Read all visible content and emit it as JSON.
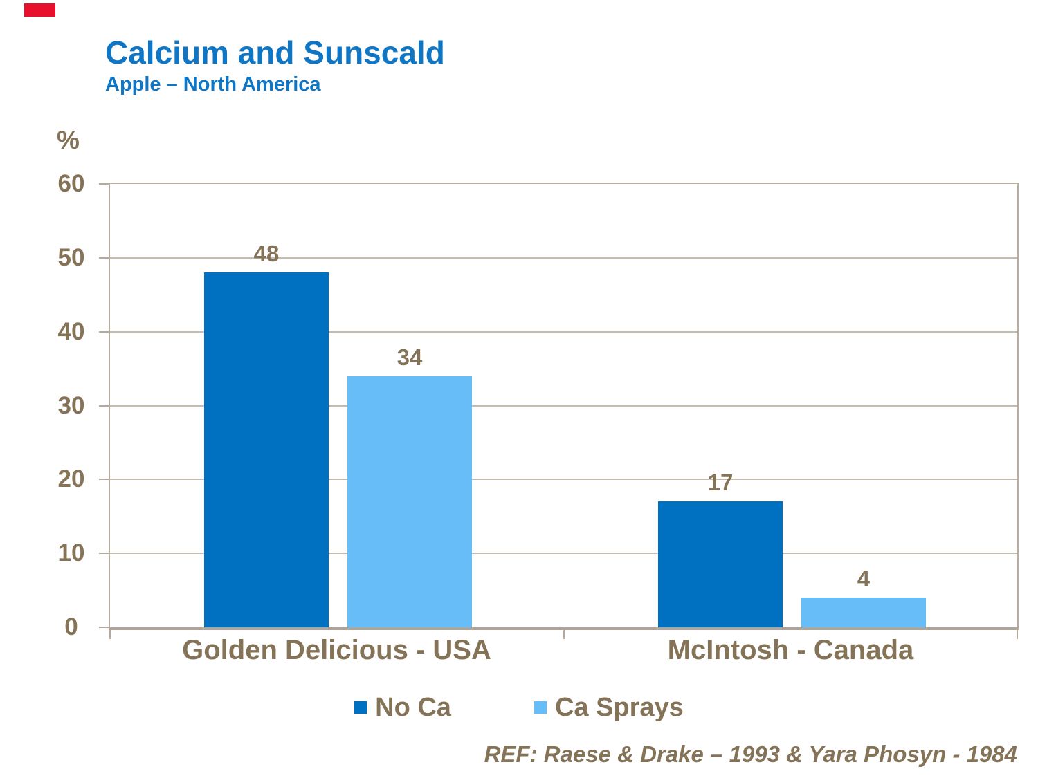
{
  "brand": {
    "mark_color": "#E8112D"
  },
  "header": {
    "title": "Calcium and Sunscald",
    "subtitle": "Apple – North America"
  },
  "y_axis": {
    "unit_label": "%"
  },
  "chart_data": {
    "type": "bar",
    "title": "Calcium and Sunscald",
    "subtitle": "Apple – North America",
    "xlabel": "",
    "ylabel": "%",
    "categories": [
      "Golden Delicious - USA",
      "McIntosh - Canada"
    ],
    "series": [
      {
        "name": "No Ca",
        "color": "#0070C0",
        "values": [
          48,
          17
        ]
      },
      {
        "name": "Ca Sprays",
        "color": "#67BDF8",
        "values": [
          34,
          4
        ]
      }
    ],
    "ylim": [
      0,
      60
    ],
    "yticks": [
      0,
      10,
      20,
      30,
      40,
      50,
      60
    ],
    "grid": true,
    "legend_position": "bottom",
    "value_labels": true
  },
  "footer": {
    "reference": "REF: Raese & Drake – 1993 & Yara Phosyn - 1984"
  },
  "style": {
    "title_blue": "#0E76C5",
    "text_brown": "#857358",
    "axis_color": "#B3A99C",
    "grid_color": "#C5BCAF"
  }
}
